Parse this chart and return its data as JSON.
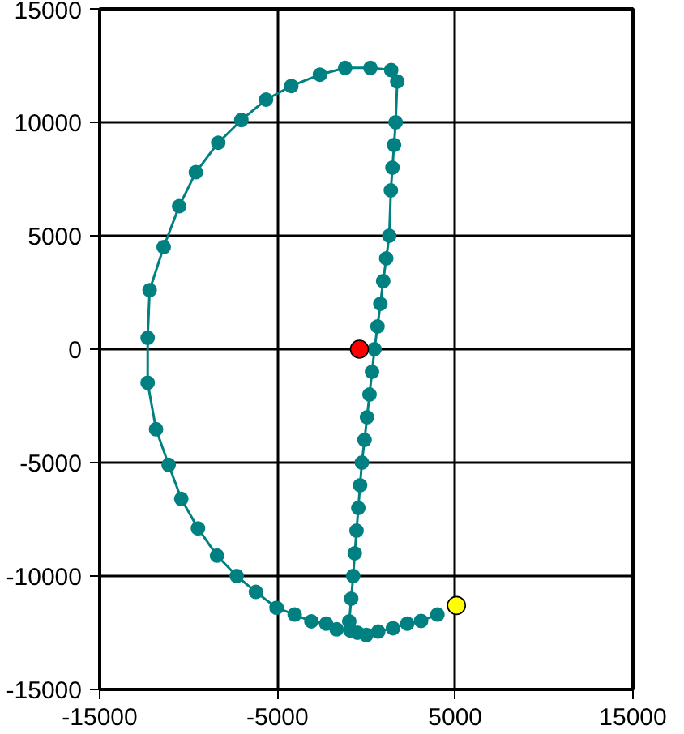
{
  "chart_data": {
    "type": "line",
    "marker": "circle",
    "grid": true,
    "xlim": [
      -15000,
      15000
    ],
    "ylim": [
      -15000,
      15000
    ],
    "xticks": [
      -15000,
      -5000,
      5000,
      15000
    ],
    "yticks": [
      -15000,
      -10000,
      -5000,
      0,
      5000,
      10000,
      15000
    ],
    "series": [
      {
        "color": "#008080",
        "x": [
          -1670,
          -2260,
          -3090,
          -4030,
          -5050,
          -6210,
          -7290,
          -8400,
          -9470,
          -10410,
          -11120,
          -11830,
          -12300,
          -12300,
          -12190,
          -11400,
          -10530,
          -9590,
          -8330,
          -7030,
          -5640,
          -4220,
          -2610,
          -1190,
          230,
          1400,
          1740,
          1650,
          1560,
          1470,
          1380,
          1290,
          1120,
          950,
          790,
          630,
          460,
          320,
          180,
          40,
          -100,
          -250,
          -350,
          -450,
          -550,
          -650,
          -740,
          -850,
          -960,
          -900,
          -500,
          0,
          670,
          1500,
          2300,
          3080,
          4000
        ],
        "values": [
          -12350,
          -12100,
          -12000,
          -11700,
          -11400,
          -10700,
          -10000,
          -9100,
          -7900,
          -6600,
          -5100,
          -3530,
          -1480,
          500,
          2600,
          4500,
          6300,
          7800,
          9100,
          10100,
          11000,
          11600,
          12100,
          12400,
          12400,
          12300,
          11800,
          10000,
          9000,
          8000,
          7000,
          5000,
          4000,
          3000,
          2000,
          1000,
          0,
          -1000,
          -2000,
          -3000,
          -4000,
          -5000,
          -6000,
          -7000,
          -8000,
          -9000,
          -10000,
          -11000,
          -12000,
          -12400,
          -12500,
          -12600,
          -12450,
          -12300,
          -12100,
          -11980,
          -11700
        ]
      },
      {
        "type": "scatter",
        "color": "#ff0000",
        "x": [
          -390
        ],
        "values": [
          0
        ]
      },
      {
        "type": "scatter",
        "color": "#ffff00",
        "x": [
          5070
        ],
        "values": [
          -11300
        ]
      }
    ]
  }
}
